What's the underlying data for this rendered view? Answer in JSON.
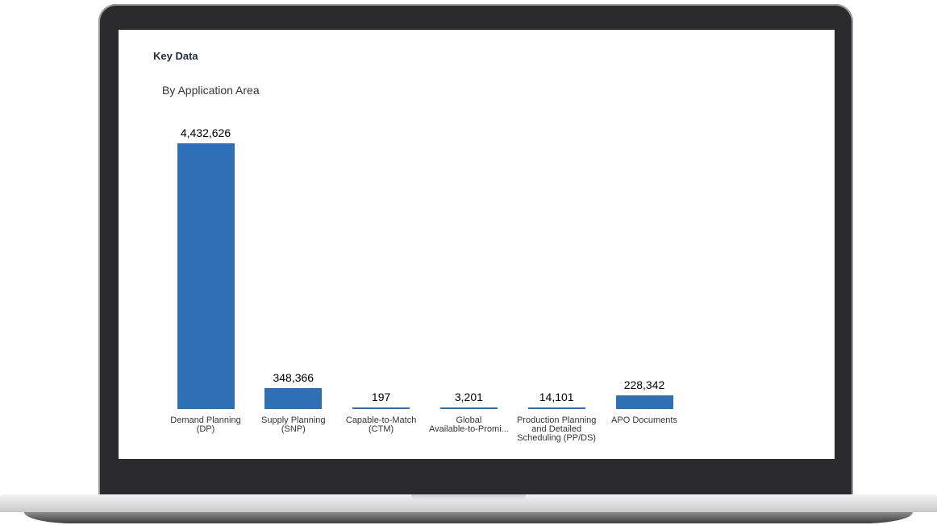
{
  "chart_data": {
    "type": "bar",
    "title": "Key Data",
    "subtitle": "By Application Area",
    "categories": [
      "Demand Planning\n(DP)",
      "Supply Planning\n(SNP)",
      "Capable-to-Match\n(CTM)",
      "Global\nAvailable-to-Promi...",
      "Production Planning\nand Detailed\nScheduling (PP/DS)",
      "APO Documents"
    ],
    "values": [
      4432626,
      348366,
      197,
      3201,
      14101,
      228342
    ],
    "value_labels": [
      "4,432,626",
      "348,366",
      "197",
      "3,201",
      "14,101",
      "228,342"
    ],
    "color": "#2f6fb6"
  }
}
